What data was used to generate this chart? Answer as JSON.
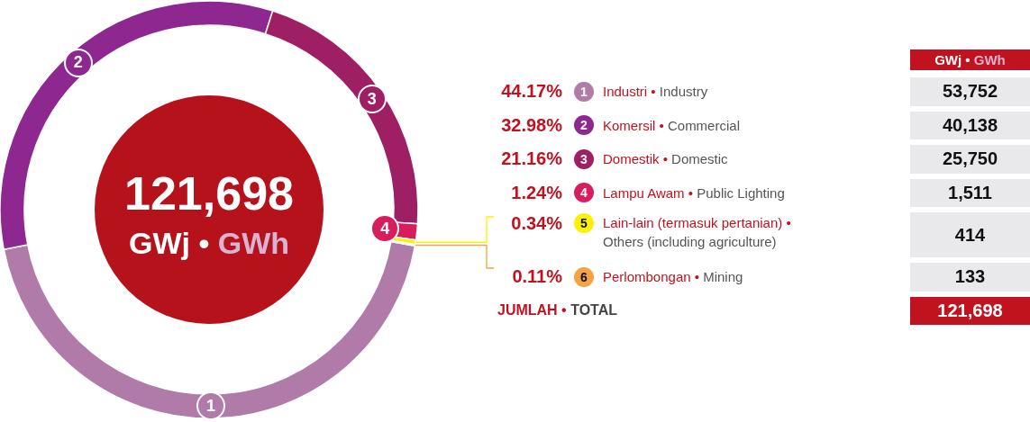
{
  "chart_data": {
    "type": "donut",
    "subtitle": "GWj • GWh",
    "legend_title": "GWj • GWh",
    "categories": [
      "Industri • Industry",
      "Komersil • Commercial",
      "Domestik • Domestic",
      "Lampu Awam • Public Lighting",
      "Lain-lain (termasuk pertanian) • Others (including agriculture)",
      "Perlombongan • Mining"
    ],
    "values": [
      53752,
      40138,
      25750,
      1511,
      414,
      133
    ],
    "colors": [
      "#b07aa9",
      "#8f2790",
      "#9e1f63",
      "#d91c5c",
      "#fff200",
      "#f6a343"
    ],
    "value_labels": [
      "53,752",
      "40,138",
      "25,750",
      "1,511",
      "414",
      "133"
    ],
    "totals": [
      "121,698"
    ],
    "legend": "right",
    "annotations": [
      {
        "text": "44.17%",
        "x": "Industri • Industry"
      },
      {
        "text": "32.98%",
        "x": "Komersil • Commercial"
      },
      {
        "text": "21.16%",
        "x": "Domestik • Domestic"
      },
      {
        "text": "1.24%",
        "x": "Lampu Awam • Public Lighting"
      },
      {
        "text": "0.34%",
        "x": "Lain-lain (termasuk pertanian) • Others (including agriculture)"
      },
      {
        "text": "0.11%",
        "x": "Perlombongan • Mining"
      },
      {
        "text": "1",
        "x": "Industri • Industry"
      },
      {
        "text": "2",
        "x": "Komersil • Commercial"
      },
      {
        "text": "3",
        "x": "Domestik • Domestic"
      },
      {
        "text": "4",
        "x": "Lampu Awam • Public Lighting"
      },
      {
        "text": "5",
        "x": "Lain-lain (termasuk pertanian) • Others (including agriculture)"
      },
      {
        "text": "6",
        "x": "Perlombongan • Mining"
      },
      "JUMLAH • TOTAL"
    ]
  }
}
